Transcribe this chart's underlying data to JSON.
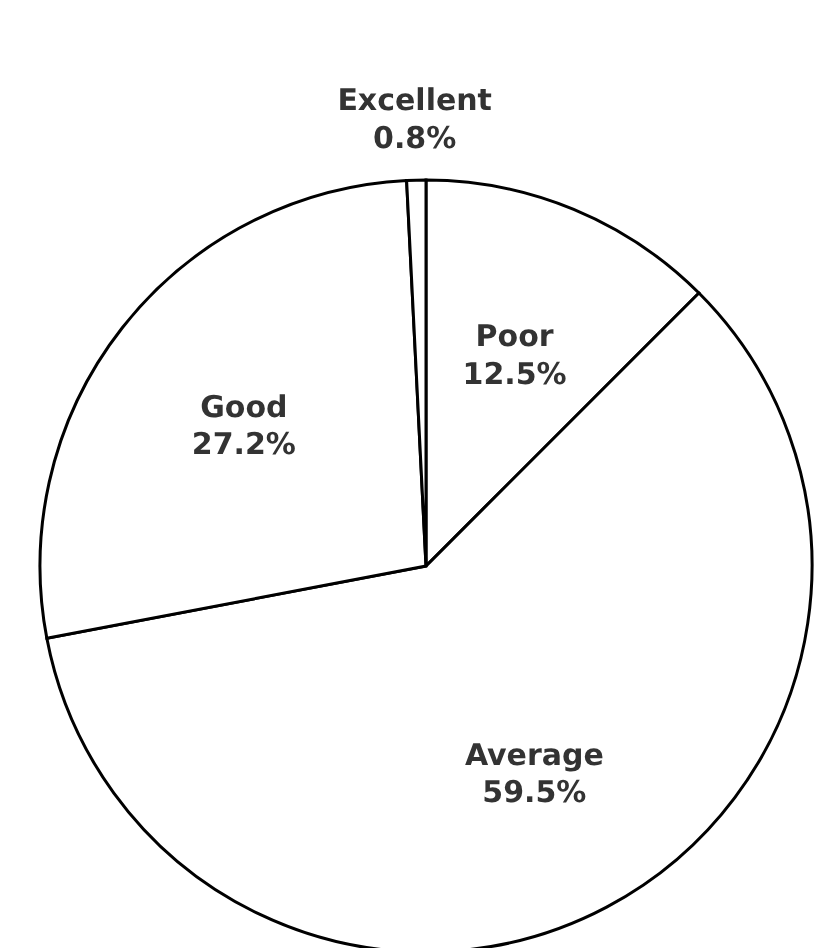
{
  "chart_data": {
    "type": "pie",
    "categories": [
      "Poor",
      "Average",
      "Good",
      "Excellent"
    ],
    "values": [
      12.5,
      59.5,
      27.2,
      0.8
    ],
    "value_labels": [
      "12.5%",
      "59.5%",
      "27.2%",
      "0.8%"
    ],
    "colors": [
      "#ffffff",
      "#ffffff",
      "#ffffff",
      "#ffffff"
    ],
    "legend": false
  }
}
